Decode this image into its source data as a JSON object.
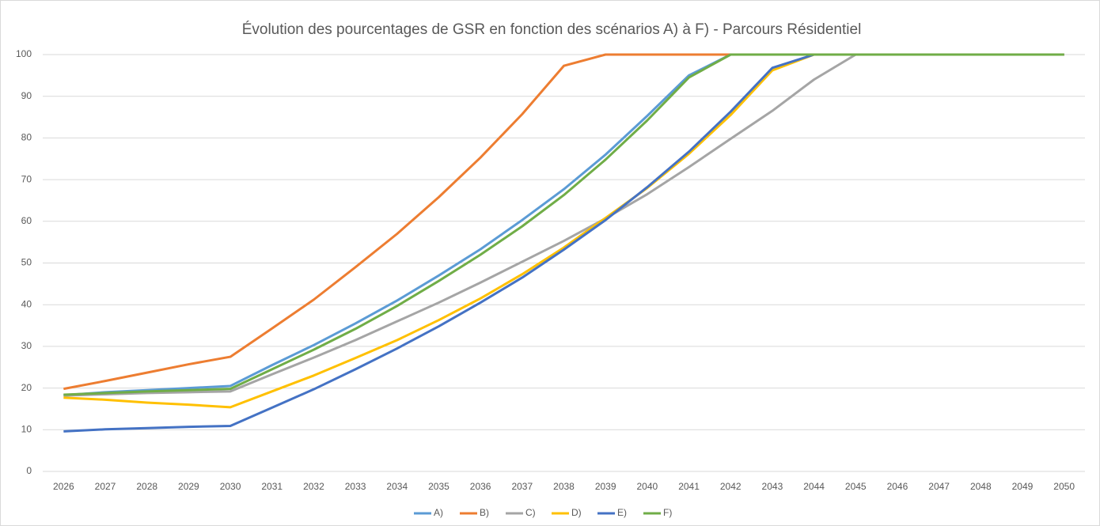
{
  "chart_data": {
    "type": "line",
    "title": "Évolution des pourcentages de GSR en fonction des scénarios A) à F) - Parcours Résidentiel",
    "categories": [
      "2026",
      "2027",
      "2028",
      "2029",
      "2030",
      "2031",
      "2032",
      "2033",
      "2034",
      "2035",
      "2036",
      "2037",
      "2038",
      "2039",
      "2040",
      "2041",
      "2042",
      "2043",
      "2044",
      "2045",
      "2046",
      "2047",
      "2048",
      "2049",
      "2050"
    ],
    "series": [
      {
        "name": "A)",
        "color": "#5b9bd5",
        "values": [
          18.3,
          19,
          19.5,
          20,
          20.5,
          25.5,
          30.3,
          35.5,
          41,
          47,
          53.3,
          60.3,
          67.7,
          76,
          85.3,
          95,
          100,
          100,
          100,
          100,
          100,
          100,
          100,
          100,
          100
        ]
      },
      {
        "name": "B)",
        "color": "#ed7d31",
        "values": [
          19.8,
          21.7,
          23.7,
          25.7,
          27.5,
          34.3,
          41.2,
          49,
          57,
          65.8,
          75.3,
          85.7,
          97.3,
          100,
          100,
          100,
          100,
          100,
          100,
          100,
          100,
          100,
          100,
          100,
          100
        ]
      },
      {
        "name": "C)",
        "color": "#a5a5a5",
        "values": [
          18.2,
          18.5,
          18.8,
          19,
          19.2,
          23.3,
          27.3,
          31.5,
          36,
          40.5,
          45.3,
          50.3,
          55.3,
          60.7,
          66.5,
          73,
          79.8,
          86.5,
          94,
          100,
          100,
          100,
          100,
          100,
          100
        ]
      },
      {
        "name": "D)",
        "color": "#ffc000",
        "values": [
          17.7,
          17.2,
          16.5,
          16,
          15.4,
          19.2,
          23,
          27.2,
          31.5,
          36.3,
          41.5,
          47.3,
          53.7,
          60.8,
          68,
          76.2,
          85.5,
          96.2,
          100,
          100,
          100,
          100,
          100,
          100,
          100
        ]
      },
      {
        "name": "E)",
        "color": "#4472c4",
        "values": [
          9.6,
          10.1,
          10.4,
          10.7,
          10.9,
          15.3,
          19.7,
          24.5,
          29.5,
          34.8,
          40.5,
          46.5,
          53.2,
          60.3,
          68.2,
          76.7,
          86.3,
          96.8,
          100,
          100,
          100,
          100,
          100,
          100,
          100
        ]
      },
      {
        "name": "F)",
        "color": "#70ad47",
        "values": [
          18.4,
          18.8,
          19.2,
          19.5,
          19.8,
          24.5,
          29.2,
          34.2,
          39.7,
          45.7,
          52,
          58.8,
          66.3,
          74.8,
          84.2,
          94.5,
          100,
          100,
          100,
          100,
          100,
          100,
          100,
          100,
          100
        ]
      }
    ],
    "ylim": [
      0,
      100
    ],
    "yticks": [
      0,
      10,
      20,
      30,
      40,
      50,
      60,
      70,
      80,
      90,
      100
    ],
    "grid": true,
    "legend": "bottom"
  }
}
